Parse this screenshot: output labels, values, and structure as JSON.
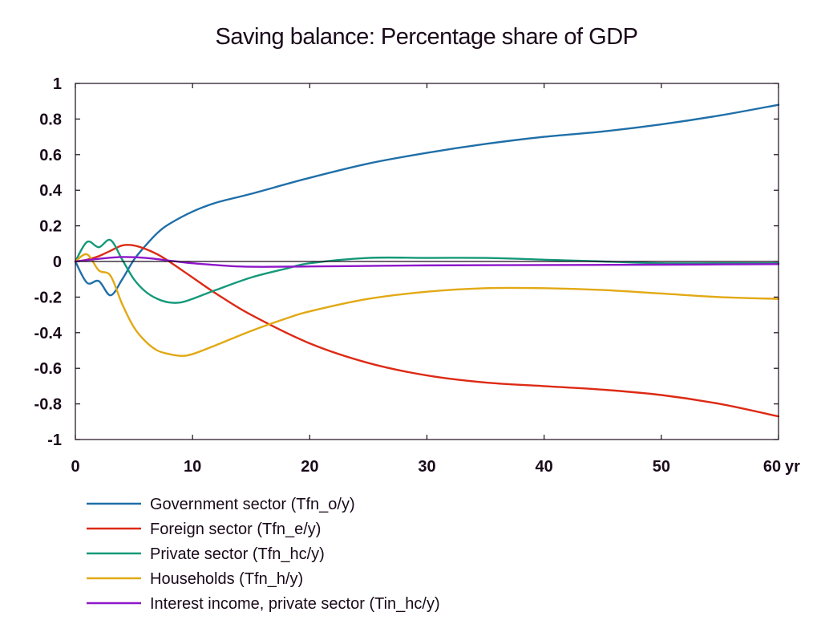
{
  "chart_data": {
    "type": "line",
    "title": "Saving balance: Percentage share of GDP",
    "xlabel": "",
    "ylabel": "",
    "x_unit_label": "yr",
    "xlim": [
      0,
      60
    ],
    "ylim": [
      -1,
      1
    ],
    "x_ticks": [
      0,
      10,
      20,
      30,
      40,
      50,
      60
    ],
    "y_ticks": [
      1,
      0.8,
      0.6,
      0.4,
      0.2,
      0,
      -0.2,
      -0.4,
      -0.6,
      -0.8,
      -1
    ],
    "grid": false,
    "legend_position": "bottom-left",
    "series": [
      {
        "name": "Government sector (Tfn_o/y)",
        "color": "#1F6FA8",
        "x": [
          0,
          1,
          2,
          3,
          4,
          5,
          6,
          7,
          8,
          10,
          12,
          15,
          20,
          25,
          30,
          35,
          40,
          45,
          50,
          55,
          60
        ],
        "values": [
          0,
          -0.12,
          -0.11,
          -0.19,
          -0.1,
          0.01,
          0.09,
          0.16,
          0.21,
          0.28,
          0.33,
          0.38,
          0.47,
          0.55,
          0.61,
          0.66,
          0.7,
          0.73,
          0.77,
          0.82,
          0.88
        ]
      },
      {
        "name": "Foreign sector (Tfn_e/y)",
        "color": "#DD2A14",
        "x": [
          0,
          1,
          2,
          3,
          4,
          5,
          6,
          7,
          8,
          10,
          12,
          15,
          20,
          25,
          30,
          35,
          40,
          45,
          50,
          55,
          60
        ],
        "values": [
          0,
          0.01,
          0.03,
          0.06,
          0.09,
          0.09,
          0.07,
          0.04,
          0.0,
          -0.09,
          -0.18,
          -0.3,
          -0.46,
          -0.57,
          -0.64,
          -0.68,
          -0.7,
          -0.72,
          -0.75,
          -0.8,
          -0.87
        ]
      },
      {
        "name": "Private sector (Tfn_hc/y)",
        "color": "#14997A",
        "x": [
          0,
          1,
          2,
          3,
          4,
          5,
          6,
          7,
          8,
          9,
          10,
          12,
          15,
          18,
          20,
          25,
          30,
          35,
          40,
          45,
          50,
          55,
          60
        ],
        "values": [
          0,
          0.11,
          0.08,
          0.12,
          0.01,
          -0.1,
          -0.17,
          -0.21,
          -0.23,
          -0.23,
          -0.21,
          -0.16,
          -0.09,
          -0.04,
          -0.01,
          0.02,
          0.02,
          0.02,
          0.01,
          0.0,
          -0.01,
          -0.01,
          -0.01
        ]
      },
      {
        "name": "Households (Tfn_h/y)",
        "color": "#E2A914",
        "x": [
          0,
          1,
          2,
          3,
          4,
          5,
          6,
          7,
          8,
          9,
          10,
          12,
          15,
          18,
          20,
          25,
          30,
          35,
          40,
          45,
          50,
          55,
          60
        ],
        "values": [
          0,
          0.04,
          -0.05,
          -0.08,
          -0.24,
          -0.37,
          -0.45,
          -0.5,
          -0.52,
          -0.53,
          -0.52,
          -0.47,
          -0.39,
          -0.32,
          -0.28,
          -0.21,
          -0.17,
          -0.15,
          -0.15,
          -0.16,
          -0.18,
          -0.2,
          -0.21
        ]
      },
      {
        "name": "Interest income, private sector (Tin_hc/y)",
        "color": "#8E17C9",
        "x": [
          0,
          2,
          4,
          6,
          8,
          10,
          12,
          14,
          16,
          20,
          25,
          30,
          40,
          50,
          60
        ],
        "values": [
          0,
          0.015,
          0.025,
          0.02,
          0.005,
          -0.01,
          -0.02,
          -0.028,
          -0.03,
          -0.028,
          -0.025,
          -0.022,
          -0.02,
          -0.018,
          -0.015
        ]
      }
    ]
  }
}
